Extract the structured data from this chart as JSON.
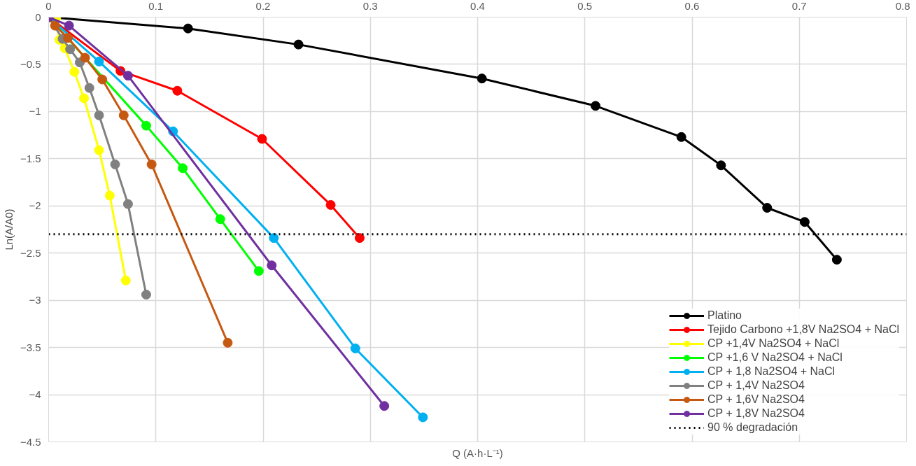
{
  "chart_data": {
    "type": "line",
    "xlabel": "Q (A·h·L⁻¹)",
    "ylabel": "Ln(A/A0)",
    "xlim": [
      0,
      0.8
    ],
    "xticks": [
      0,
      0.1,
      0.2,
      0.3,
      0.4,
      0.5,
      0.6,
      0.7,
      0.8
    ],
    "ylim": [
      -4.5,
      0
    ],
    "yticks": [
      0,
      -0.5,
      -1,
      -1.5,
      -2,
      -2.5,
      -3,
      -3.5,
      -4,
      -4.5
    ],
    "grid": true,
    "legend": "bottom right",
    "marker": "circle",
    "line_style": "solid",
    "series": [
      {
        "name": "Platino",
        "color": "#000000",
        "x": [
          0,
          0.13,
          0.233,
          0.404,
          0.51,
          0.59,
          0.627,
          0.67,
          0.705,
          0.735
        ],
        "values": [
          0,
          -0.12,
          -0.29,
          -0.65,
          -0.94,
          -1.27,
          -1.57,
          -2.02,
          -2.17,
          -2.57
        ]
      },
      {
        "name": "Tejido Carbono +1,8V Na2SO4 + NaCl",
        "color": "#ff0000",
        "x": [
          0,
          0.067,
          0.12,
          0.199,
          0.263,
          0.29
        ],
        "values": [
          0,
          -0.57,
          -0.78,
          -1.29,
          -1.99,
          -2.34
        ]
      },
      {
        "name": "CP +1,4V Na2SO4 + NaCl",
        "color": "#ffff00",
        "x": [
          0,
          0.007,
          0.01,
          0.015,
          0.024,
          0.033,
          0.047,
          0.057,
          0.072
        ],
        "values": [
          0,
          -0.01,
          -0.24,
          -0.33,
          -0.58,
          -0.86,
          -1.41,
          -1.89,
          -2.79
        ]
      },
      {
        "name": "CP +1,6 V Na2SO4 + NaCl",
        "color": "#00ff00",
        "x": [
          0,
          0.091,
          0.125,
          0.16,
          0.196
        ],
        "values": [
          0,
          -1.15,
          -1.6,
          -2.14,
          -2.69
        ]
      },
      {
        "name": "CP + 1,8 Na2SO4 + NaCl",
        "color": "#00b0f0",
        "x": [
          0,
          0.047,
          0.116,
          0.21,
          0.286,
          0.349
        ],
        "values": [
          0,
          -0.47,
          -1.21,
          -2.34,
          -3.51,
          -4.24
        ]
      },
      {
        "name": "CP + 1,4V Na2SO4",
        "color": "#808080",
        "x": [
          0,
          0.013,
          0.02,
          0.029,
          0.038,
          0.047,
          0.062,
          0.074,
          0.091
        ],
        "values": [
          0,
          -0.23,
          -0.34,
          -0.48,
          -0.75,
          -1.04,
          -1.56,
          -1.98,
          -2.94
        ]
      },
      {
        "name": "CP + 1,6V Na2SO4",
        "color": "#c65911",
        "x": [
          0,
          0.006,
          0.018,
          0.034,
          0.05,
          0.07,
          0.096,
          0.167
        ],
        "values": [
          0,
          -0.09,
          -0.22,
          -0.43,
          -0.66,
          -1.04,
          -1.56,
          -3.45
        ]
      },
      {
        "name": "CP + 1,8V Na2SO4",
        "color": "#7030a0",
        "x": [
          0,
          0.019,
          0.074,
          0.208,
          0.313
        ],
        "values": [
          0,
          -0.09,
          -0.62,
          -2.63,
          -4.12
        ]
      }
    ],
    "ref_lines": [
      {
        "axis": "y",
        "value": -2.3,
        "label": "90 % degradación",
        "color": "#000000",
        "line_style": "dotted"
      }
    ]
  }
}
